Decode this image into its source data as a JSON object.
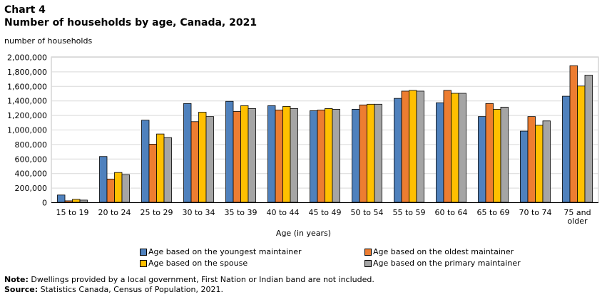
{
  "header": {
    "chart_label": "Chart 4",
    "title": "Number of households by age, Canada, 2021",
    "y_unit": "number of households"
  },
  "chart_data": {
    "type": "bar",
    "title": "Number of households by age, Canada, 2021",
    "xlabel": "Age (in years)",
    "ylabel": "number of households",
    "ylim": [
      0,
      2000000
    ],
    "yticks": [
      0,
      200000,
      400000,
      600000,
      800000,
      1000000,
      1200000,
      1400000,
      1600000,
      1800000,
      2000000
    ],
    "ytick_labels": [
      "0",
      "200,000",
      "400,000",
      "600,000",
      "800,000",
      "1,000,000",
      "1,200,000",
      "1,400,000",
      "1,600,000",
      "1,800,000",
      "2,000,000"
    ],
    "grid": true,
    "legend_position": "bottom",
    "categories": [
      "15 to 19",
      "20 to 24",
      "25 to 29",
      "30 to 34",
      "35 to 39",
      "40 to 44",
      "45 to 49",
      "50 to 54",
      "55 to 59",
      "60 to 64",
      "65 to 69",
      "70 to 74",
      "75 and older"
    ],
    "category_lines": [
      [
        "15 to 19"
      ],
      [
        "20 to 24"
      ],
      [
        "25 to 29"
      ],
      [
        "30 to 34"
      ],
      [
        "35 to 39"
      ],
      [
        "40 to 44"
      ],
      [
        "45 to 49"
      ],
      [
        "50 to 54"
      ],
      [
        "55 to 59"
      ],
      [
        "60 to 64"
      ],
      [
        "65 to 69"
      ],
      [
        "70 to 74"
      ],
      [
        "75 and",
        "older"
      ]
    ],
    "series": [
      {
        "name": "Age based on the youngest maintainer",
        "color": "#4f81bd",
        "values": [
          100000,
          630000,
          1130000,
          1360000,
          1390000,
          1330000,
          1260000,
          1280000,
          1430000,
          1370000,
          1180000,
          980000,
          1460000
        ]
      },
      {
        "name": "Age based on the oldest maintainer",
        "color": "#ed7d31",
        "values": [
          20000,
          320000,
          800000,
          1110000,
          1250000,
          1270000,
          1270000,
          1340000,
          1530000,
          1540000,
          1360000,
          1180000,
          1880000
        ]
      },
      {
        "name": "Age based on the spouse",
        "color": "#ffc000",
        "values": [
          40000,
          410000,
          940000,
          1240000,
          1330000,
          1320000,
          1290000,
          1350000,
          1540000,
          1500000,
          1280000,
          1060000,
          1600000
        ]
      },
      {
        "name": "Age based on the primary maintainer",
        "color": "#a5a5a5",
        "values": [
          30000,
          380000,
          890000,
          1180000,
          1290000,
          1290000,
          1280000,
          1350000,
          1530000,
          1500000,
          1310000,
          1120000,
          1750000
        ]
      }
    ]
  },
  "footer": {
    "note_label": "Note:",
    "note_text": " Dwellings provided by a local government, First Nation or Indian band are not included.",
    "source_label": "Source:",
    "source_text": " Statistics Canada, Census of Population, 2021."
  }
}
